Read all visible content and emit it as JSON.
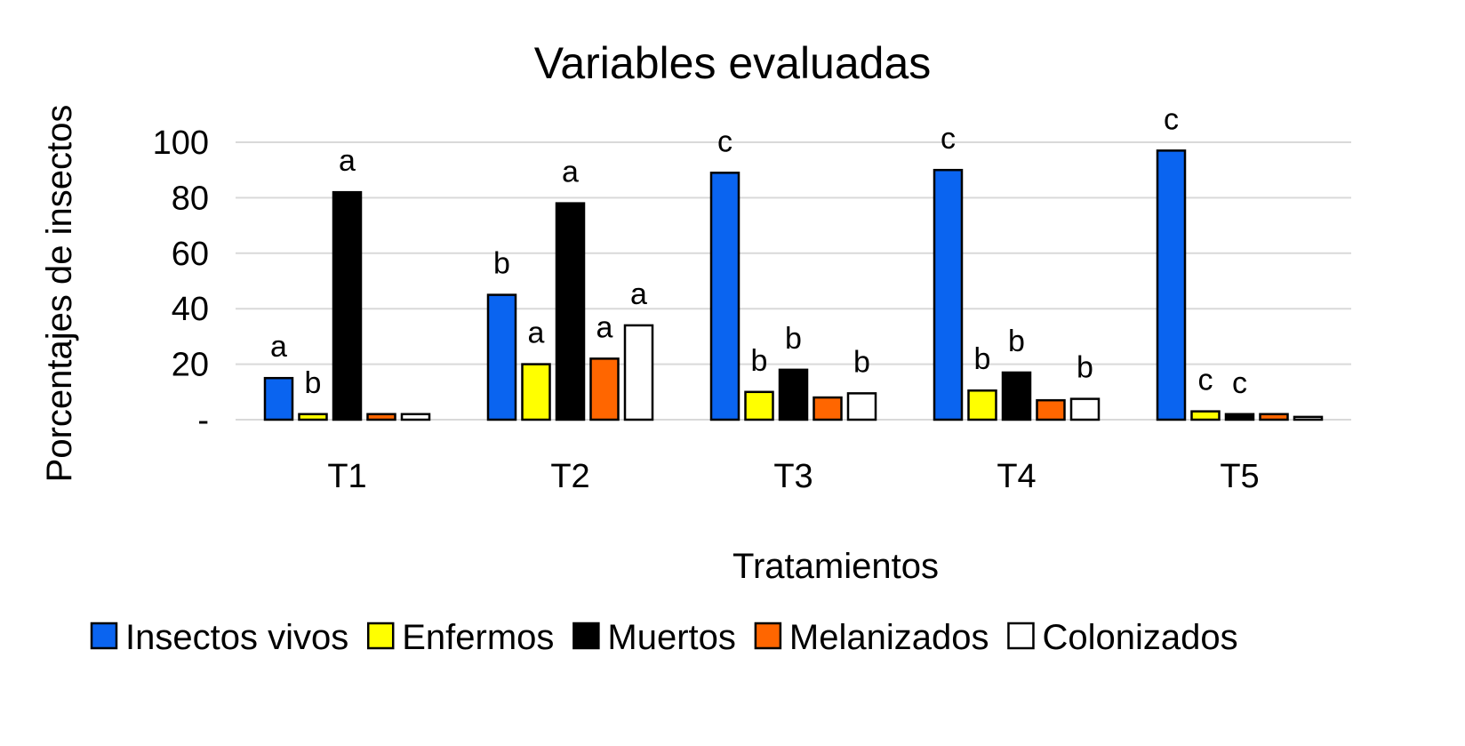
{
  "chart_data": {
    "type": "bar",
    "title": "Variables evaluadas",
    "xlabel": "Tratamientos",
    "ylabel": "Porcentajes de insectos",
    "ylim": [
      0,
      100
    ],
    "yticks": [
      0,
      20,
      40,
      60,
      80,
      100
    ],
    "ytick_labels": [
      "-",
      "20",
      "40",
      "60",
      "80",
      "100"
    ],
    "grid": true,
    "legend_position": "bottom",
    "categories": [
      "T1",
      "T2",
      "T3",
      "T4",
      "T5"
    ],
    "series": [
      {
        "name": "Insectos vivos",
        "color": "#0a64f0",
        "values": [
          15,
          45,
          89,
          90,
          97
        ],
        "labels": [
          "a",
          "b",
          "c",
          "c",
          "c"
        ]
      },
      {
        "name": "Enfermos",
        "color": "#ffff00",
        "values": [
          2,
          20,
          10,
          10.5,
          3
        ],
        "labels": [
          "b",
          "a",
          "b",
          "b",
          "c"
        ]
      },
      {
        "name": "Muertos",
        "color": "#000000",
        "values": [
          82,
          78,
          18,
          17,
          2
        ],
        "labels": [
          "a",
          "a",
          "b",
          "b",
          "c"
        ]
      },
      {
        "name": "Melanizados",
        "color": "#ff6600",
        "values": [
          2,
          22,
          8,
          7,
          2
        ],
        "labels": [
          "",
          "a",
          "",
          "",
          ""
        ]
      },
      {
        "name": "Colonizados",
        "color": "#ffffff",
        "values": [
          2,
          34,
          9.5,
          7.5,
          1
        ],
        "labels": [
          "",
          "a",
          "b",
          "b",
          ""
        ]
      }
    ]
  }
}
